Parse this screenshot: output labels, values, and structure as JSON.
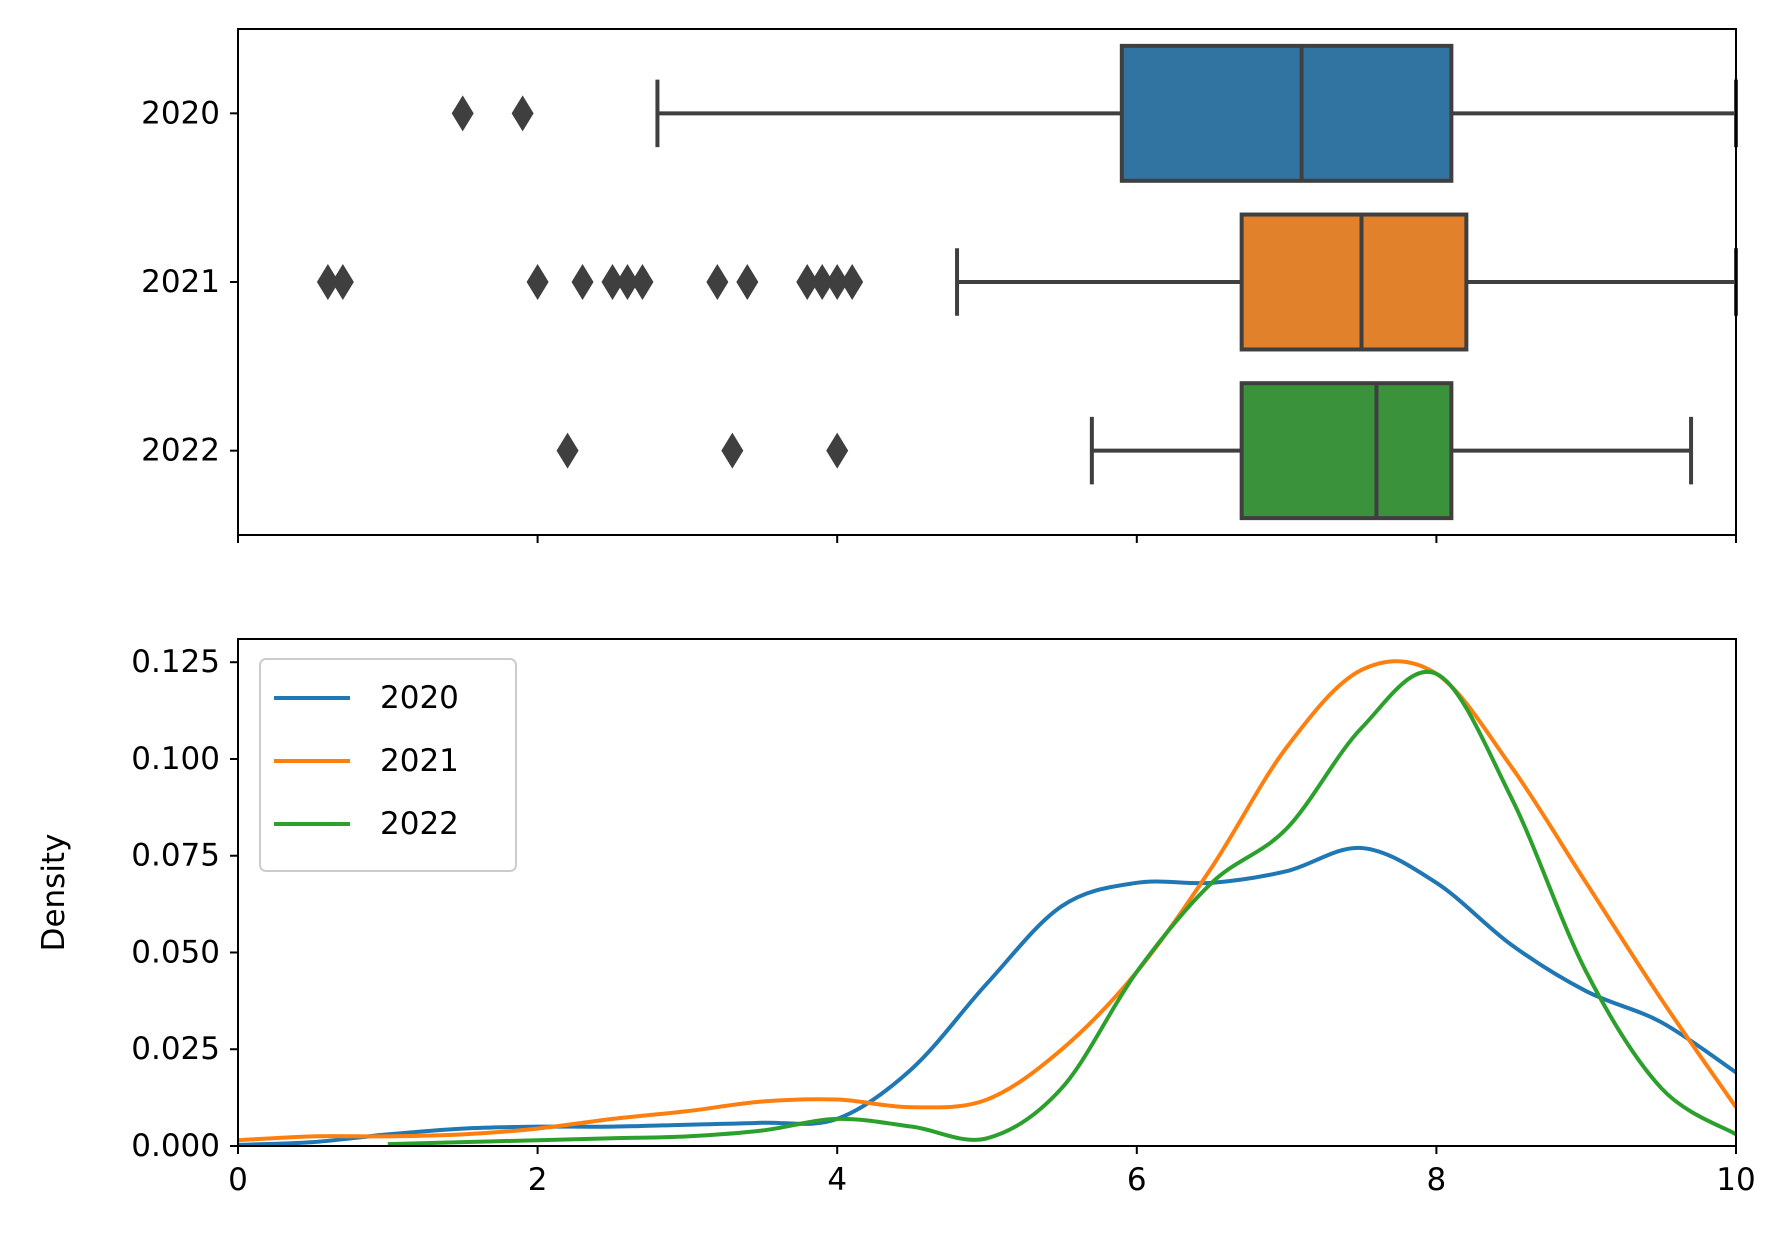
{
  "chart_data": [
    {
      "type": "box",
      "orientation": "horizontal",
      "xlim": [
        0,
        10
      ],
      "categories": [
        "2020",
        "2021",
        "2022"
      ],
      "xticks_shown": false,
      "box_color": "#3f3f3f",
      "series": [
        {
          "name": "2020",
          "color": "#3274a1",
          "whisker_low": 2.8,
          "q1": 5.9,
          "median": 7.1,
          "q3": 8.1,
          "whisker_high": 10.0,
          "outliers": [
            1.5,
            1.9
          ]
        },
        {
          "name": "2021",
          "color": "#e1812c",
          "whisker_low": 4.8,
          "q1": 6.7,
          "median": 7.5,
          "q3": 8.2,
          "whisker_high": 10.0,
          "outliers": [
            0.6,
            0.7,
            2.0,
            2.3,
            2.5,
            2.6,
            2.7,
            3.2,
            3.4,
            3.8,
            3.9,
            4.0,
            4.1
          ]
        },
        {
          "name": "2022",
          "color": "#3a923a",
          "whisker_low": 5.7,
          "q1": 6.7,
          "median": 7.6,
          "q3": 8.1,
          "whisker_high": 9.7,
          "outliers": [
            2.2,
            3.3,
            4.0
          ]
        }
      ]
    },
    {
      "type": "line",
      "subtype": "kde",
      "xlim": [
        0,
        10
      ],
      "ylim": [
        0,
        0.131
      ],
      "xticks": [
        "0",
        "2",
        "4",
        "6",
        "8",
        "10"
      ],
      "yticks": [
        "0.000",
        "0.025",
        "0.050",
        "0.075",
        "0.100",
        "0.125"
      ],
      "xlabel": "",
      "ylabel": "Density",
      "legend_position": "top-left",
      "series": [
        {
          "name": "2020",
          "color": "#1f77b4",
          "x": [
            0,
            0.5,
            1,
            1.5,
            2,
            2.5,
            3,
            3.5,
            4,
            4.5,
            5,
            5.5,
            6,
            6.5,
            7,
            7.5,
            8,
            8.5,
            9,
            9.5,
            10
          ],
          "y": [
            0.0003,
            0.001,
            0.003,
            0.0045,
            0.005,
            0.005,
            0.0055,
            0.006,
            0.007,
            0.02,
            0.042,
            0.062,
            0.068,
            0.068,
            0.071,
            0.077,
            0.068,
            0.052,
            0.04,
            0.032,
            0.019
          ]
        },
        {
          "name": "2021",
          "color": "#ff7f0e",
          "x": [
            0,
            0.5,
            1,
            1.5,
            2,
            2.5,
            3,
            3.5,
            4,
            4.5,
            5,
            5.5,
            6,
            6.5,
            7,
            7.5,
            8,
            8.5,
            9,
            9.5,
            10
          ],
          "y": [
            0.0015,
            0.0025,
            0.0025,
            0.003,
            0.0045,
            0.007,
            0.009,
            0.0115,
            0.012,
            0.01,
            0.012,
            0.025,
            0.045,
            0.072,
            0.103,
            0.123,
            0.122,
            0.098,
            0.068,
            0.038,
            0.01
          ]
        },
        {
          "name": "2022",
          "color": "#2ca02c",
          "x": [
            1,
            1.5,
            2,
            2.5,
            3,
            3.5,
            4,
            4.5,
            5,
            5.5,
            6,
            6.5,
            7,
            7.5,
            8,
            8.5,
            9,
            9.5,
            10
          ],
          "y": [
            0.0005,
            0.001,
            0.0015,
            0.002,
            0.0025,
            0.004,
            0.007,
            0.005,
            0.002,
            0.015,
            0.045,
            0.068,
            0.082,
            0.108,
            0.122,
            0.09,
            0.045,
            0.015,
            0.003
          ]
        }
      ]
    }
  ]
}
